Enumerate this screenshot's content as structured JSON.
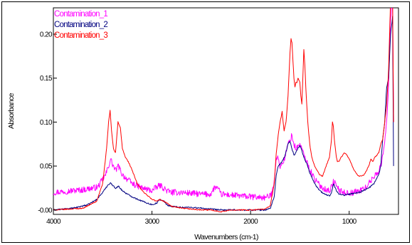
{
  "chart_data": {
    "type": "line",
    "title": "",
    "xlabel": "Wavenumbers (cm-1)",
    "ylabel": "Absorbance",
    "xlim": [
      4000,
      500
    ],
    "ylim": [
      -0.005,
      0.23
    ],
    "x_reversed": true,
    "x_ticks": [
      4000,
      3000,
      2000,
      1000
    ],
    "x_tick_labels": [
      "4000",
      "3000",
      "2000",
      "1000"
    ],
    "y_ticks": [
      0.0,
      0.05,
      0.1,
      0.15,
      0.2
    ],
    "y_tick_labels": [
      "-0.00",
      "0.05",
      "0.10",
      "0.15",
      "0.20"
    ],
    "grid": false,
    "legend": "top-left",
    "series": [
      {
        "name": "Contamination_1",
        "color": "#ff00ff",
        "noise": 0.0035,
        "x": [
          4000,
          3700,
          3550,
          3470,
          3440,
          3420,
          3400,
          3370,
          3340,
          3300,
          3250,
          3200,
          3100,
          3000,
          2950,
          2920,
          2880,
          2850,
          2800,
          2700,
          2600,
          2500,
          2400,
          2370,
          2350,
          2320,
          2300,
          2200,
          2000,
          1850,
          1800,
          1780,
          1760,
          1740,
          1720,
          1700,
          1680,
          1650,
          1620,
          1600,
          1580,
          1560,
          1540,
          1520,
          1500,
          1480,
          1460,
          1440,
          1420,
          1400,
          1380,
          1350,
          1300,
          1250,
          1200,
          1180,
          1160,
          1140,
          1120,
          1100,
          1050,
          1000,
          950,
          900,
          850,
          800,
          750,
          700,
          680,
          660,
          640,
          620,
          600,
          580,
          560,
          550
        ],
        "y": [
          0.02,
          0.023,
          0.026,
          0.04,
          0.05,
          0.058,
          0.052,
          0.045,
          0.05,
          0.04,
          0.035,
          0.03,
          0.025,
          0.022,
          0.026,
          0.028,
          0.025,
          0.022,
          0.02,
          0.02,
          0.019,
          0.018,
          0.018,
          0.025,
          0.026,
          0.022,
          0.018,
          0.017,
          0.015,
          0.014,
          0.016,
          0.02,
          0.035,
          0.06,
          0.058,
          0.05,
          0.052,
          0.06,
          0.075,
          0.08,
          0.085,
          0.074,
          0.07,
          0.072,
          0.075,
          0.07,
          0.062,
          0.058,
          0.052,
          0.046,
          0.042,
          0.035,
          0.028,
          0.024,
          0.022,
          0.026,
          0.032,
          0.03,
          0.026,
          0.022,
          0.02,
          0.019,
          0.02,
          0.022,
          0.024,
          0.03,
          0.038,
          0.045,
          0.05,
          0.06,
          0.08,
          0.1,
          0.14,
          0.22,
          0.24,
          0.1
        ]
      },
      {
        "name": "Contamination_2",
        "color": "#000080",
        "noise": 0.0008,
        "x": [
          4000,
          3800,
          3650,
          3560,
          3500,
          3450,
          3420,
          3400,
          3370,
          3340,
          3300,
          3250,
          3200,
          3100,
          3000,
          2950,
          2920,
          2880,
          2850,
          2800,
          2700,
          2600,
          2500,
          2400,
          2300,
          2200,
          2000,
          1850,
          1800,
          1760,
          1740,
          1720,
          1700,
          1680,
          1650,
          1620,
          1600,
          1580,
          1560,
          1540,
          1520,
          1500,
          1480,
          1460,
          1440,
          1420,
          1400,
          1380,
          1350,
          1300,
          1250,
          1200,
          1180,
          1160,
          1140,
          1120,
          1100,
          1050,
          1000,
          900,
          800,
          750,
          700,
          680,
          660,
          640,
          620,
          600,
          580,
          560,
          550
        ],
        "y": [
          0.0,
          0.002,
          0.006,
          0.012,
          0.02,
          0.028,
          0.031,
          0.028,
          0.025,
          0.027,
          0.022,
          0.018,
          0.015,
          0.01,
          0.006,
          0.008,
          0.012,
          0.01,
          0.006,
          0.004,
          0.003,
          0.003,
          0.002,
          0.001,
          0.0,
          0.0,
          0.0,
          0.0,
          0.002,
          0.015,
          0.04,
          0.05,
          0.052,
          0.055,
          0.062,
          0.075,
          0.078,
          0.07,
          0.062,
          0.066,
          0.07,
          0.073,
          0.068,
          0.06,
          0.055,
          0.05,
          0.042,
          0.038,
          0.03,
          0.022,
          0.018,
          0.016,
          0.02,
          0.03,
          0.025,
          0.02,
          0.018,
          0.017,
          0.018,
          0.02,
          0.025,
          0.03,
          0.04,
          0.05,
          0.08,
          0.1,
          0.14,
          0.15,
          0.2,
          0.22,
          0.05
        ]
      },
      {
        "name": "Contamination_3",
        "color": "#ff0000",
        "noise": 0.0006,
        "x": [
          4000,
          3700,
          3560,
          3500,
          3460,
          3440,
          3425,
          3410,
          3390,
          3370,
          3345,
          3320,
          3300,
          3270,
          3240,
          3200,
          3150,
          3100,
          3000,
          2950,
          2920,
          2880,
          2850,
          2800,
          2700,
          2600,
          2500,
          2400,
          2300,
          2200,
          2000,
          1850,
          1800,
          1760,
          1740,
          1720,
          1700,
          1680,
          1670,
          1660,
          1650,
          1640,
          1620,
          1600,
          1590,
          1580,
          1570,
          1560,
          1550,
          1540,
          1530,
          1520,
          1510,
          1500,
          1490,
          1480,
          1470,
          1460,
          1450,
          1440,
          1430,
          1420,
          1400,
          1380,
          1350,
          1300,
          1270,
          1250,
          1200,
          1180,
          1170,
          1160,
          1150,
          1140,
          1130,
          1120,
          1100,
          1080,
          1050,
          1020,
          1000,
          950,
          900,
          850,
          800,
          780,
          760,
          740,
          720,
          700,
          680,
          660,
          640,
          620,
          600,
          580,
          560,
          550
        ],
        "y": [
          0.0,
          0.002,
          0.01,
          0.03,
          0.07,
          0.1,
          0.113,
          0.09,
          0.07,
          0.065,
          0.1,
          0.093,
          0.07,
          0.06,
          0.055,
          0.045,
          0.03,
          0.022,
          0.012,
          0.01,
          0.012,
          0.01,
          0.008,
          0.004,
          0.002,
          0.001,
          0.0,
          0.0,
          -0.002,
          0.0,
          0.0,
          0.001,
          0.005,
          0.03,
          0.065,
          0.085,
          0.1,
          0.112,
          0.1,
          0.09,
          0.095,
          0.1,
          0.13,
          0.18,
          0.195,
          0.19,
          0.17,
          0.15,
          0.14,
          0.145,
          0.145,
          0.15,
          0.148,
          0.145,
          0.13,
          0.12,
          0.15,
          0.183,
          0.165,
          0.14,
          0.12,
          0.1,
          0.075,
          0.06,
          0.05,
          0.04,
          0.038,
          0.045,
          0.06,
          0.08,
          0.1,
          0.095,
          0.08,
          0.07,
          0.06,
          0.055,
          0.056,
          0.06,
          0.065,
          0.062,
          0.058,
          0.045,
          0.038,
          0.04,
          0.05,
          0.058,
          0.055,
          0.06,
          0.062,
          0.065,
          0.075,
          0.08,
          0.1,
          0.12,
          0.16,
          0.24,
          0.24,
          0.1
        ]
      }
    ]
  }
}
